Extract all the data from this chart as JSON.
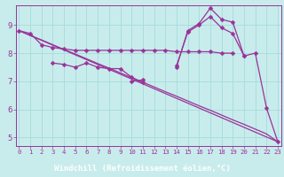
{
  "xlabel": "Windchill (Refroidissement éolien,°C)",
  "background_color": "#c8ecec",
  "grid_color": "#aadddd",
  "line_color": "#993399",
  "label_bg": "#660066",
  "label_fg": "#ffffff",
  "x": [
    0,
    1,
    2,
    3,
    4,
    5,
    6,
    7,
    8,
    9,
    10,
    11,
    12,
    13,
    14,
    15,
    16,
    17,
    18,
    19,
    20,
    21,
    22,
    23
  ],
  "line_flat": [
    8.8,
    8.7,
    8.3,
    8.2,
    8.15,
    8.1,
    8.1,
    8.1,
    8.1,
    8.1,
    8.1,
    8.1,
    8.1,
    8.1,
    8.05,
    8.05,
    8.05,
    8.05,
    8.0,
    8.0,
    null,
    null,
    null,
    null
  ],
  "line_peak": [
    null,
    null,
    null,
    null,
    null,
    null,
    null,
    null,
    null,
    null,
    7.0,
    7.05,
    null,
    null,
    7.5,
    8.8,
    9.05,
    9.6,
    9.2,
    9.1,
    7.9,
    8.0,
    6.05,
    4.85
  ],
  "line_mid": [
    null,
    null,
    null,
    7.65,
    7.6,
    7.5,
    7.65,
    7.5,
    7.45,
    7.45,
    7.15,
    6.95,
    null,
    null,
    7.55,
    8.75,
    9.0,
    9.3,
    8.9,
    8.7,
    7.9,
    null,
    null,
    null
  ],
  "line_diag": [
    8.8,
    null,
    null,
    null,
    null,
    null,
    null,
    null,
    null,
    null,
    null,
    null,
    null,
    null,
    null,
    null,
    null,
    null,
    null,
    null,
    null,
    null,
    null,
    4.85
  ],
  "line_trend": [
    8.8,
    8.63,
    8.47,
    8.3,
    8.13,
    7.97,
    7.8,
    7.63,
    7.47,
    7.3,
    7.13,
    6.97,
    6.8,
    6.63,
    6.47,
    6.3,
    6.13,
    5.97,
    5.8,
    5.63,
    5.47,
    5.3,
    5.13,
    4.85
  ],
  "ylim": [
    4.7,
    9.7
  ],
  "xlim": [
    -0.3,
    23.3
  ],
  "yticks": [
    5,
    6,
    7,
    8,
    9
  ],
  "xticks": [
    0,
    1,
    2,
    3,
    4,
    5,
    6,
    7,
    8,
    9,
    10,
    11,
    12,
    13,
    14,
    15,
    16,
    17,
    18,
    19,
    20,
    21,
    22,
    23
  ],
  "marker": "D",
  "markersize": 2.5,
  "linewidth": 0.9
}
